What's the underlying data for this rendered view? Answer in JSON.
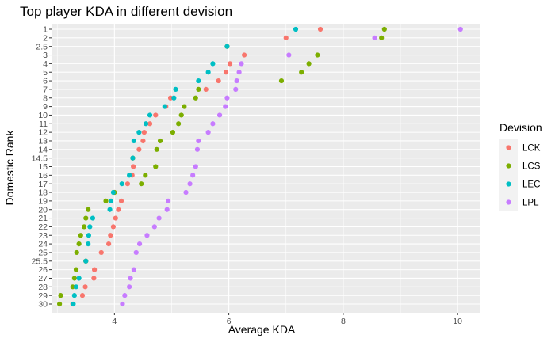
{
  "chart_data": {
    "type": "scatter",
    "title": "Top player KDA in different devision",
    "xlabel": "Average KDA",
    "ylabel": "Domestic Rank",
    "xlim": [
      2.9,
      10.4
    ],
    "x_ticks": [
      "4",
      "6",
      "8",
      "10"
    ],
    "y_categories": [
      "1",
      "2",
      "2.5",
      "3",
      "4",
      "5",
      "6",
      "7",
      "8",
      "9",
      "10",
      "11",
      "12",
      "13",
      "14",
      "14.5",
      "15",
      "16",
      "17",
      "18",
      "19",
      "20",
      "21",
      "22",
      "23",
      "24",
      "25",
      "25.5",
      "26",
      "27",
      "28",
      "29",
      "30"
    ],
    "grid": true,
    "panel_background": "#ebebeb",
    "legend": {
      "title": "Devision",
      "position": "right",
      "background": "#f2f2f2"
    },
    "series": [
      {
        "name": "LCK",
        "color": "#F8766D",
        "points": [
          {
            "x": 7.6,
            "y": "1"
          },
          {
            "x": 7.0,
            "y": "2"
          },
          {
            "x": 5.97,
            "y": "2.5"
          },
          {
            "x": 6.27,
            "y": "3"
          },
          {
            "x": 6.02,
            "y": "4"
          },
          {
            "x": 5.95,
            "y": "5"
          },
          {
            "x": 5.82,
            "y": "6"
          },
          {
            "x": 5.6,
            "y": "7"
          },
          {
            "x": 4.98,
            "y": "8"
          },
          {
            "x": 4.9,
            "y": "9"
          },
          {
            "x": 4.72,
            "y": "10"
          },
          {
            "x": 4.62,
            "y": "11"
          },
          {
            "x": 4.52,
            "y": "12"
          },
          {
            "x": 4.5,
            "y": "13"
          },
          {
            "x": 4.43,
            "y": "14"
          },
          {
            "x": 4.32,
            "y": "14.5"
          },
          {
            "x": 4.33,
            "y": "15"
          },
          {
            "x": 4.31,
            "y": "16"
          },
          {
            "x": 4.23,
            "y": "17"
          },
          {
            "x": 4.0,
            "y": "18"
          },
          {
            "x": 4.12,
            "y": "19"
          },
          {
            "x": 4.07,
            "y": "20"
          },
          {
            "x": 4.02,
            "y": "21"
          },
          {
            "x": 3.98,
            "y": "22"
          },
          {
            "x": 3.93,
            "y": "23"
          },
          {
            "x": 3.9,
            "y": "24"
          },
          {
            "x": 3.77,
            "y": "25"
          },
          {
            "x": 3.5,
            "y": "25.5"
          },
          {
            "x": 3.65,
            "y": "26"
          },
          {
            "x": 3.64,
            "y": "27"
          },
          {
            "x": 3.49,
            "y": "28"
          },
          {
            "x": 3.44,
            "y": "29"
          },
          {
            "x": 3.27,
            "y": "30"
          }
        ]
      },
      {
        "name": "LCS",
        "color": "#7CAE00",
        "points": [
          {
            "x": 8.72,
            "y": "1"
          },
          {
            "x": 8.67,
            "y": "2"
          },
          {
            "x": 5.97,
            "y": "2.5"
          },
          {
            "x": 7.55,
            "y": "3"
          },
          {
            "x": 7.4,
            "y": "4"
          },
          {
            "x": 7.27,
            "y": "5"
          },
          {
            "x": 6.92,
            "y": "6"
          },
          {
            "x": 5.47,
            "y": "7"
          },
          {
            "x": 5.42,
            "y": "8"
          },
          {
            "x": 5.22,
            "y": "9"
          },
          {
            "x": 5.17,
            "y": "10"
          },
          {
            "x": 5.12,
            "y": "11"
          },
          {
            "x": 5.02,
            "y": "12"
          },
          {
            "x": 4.8,
            "y": "13"
          },
          {
            "x": 4.74,
            "y": "14"
          },
          {
            "x": 4.32,
            "y": "14.5"
          },
          {
            "x": 4.72,
            "y": "15"
          },
          {
            "x": 4.54,
            "y": "16"
          },
          {
            "x": 4.47,
            "y": "17"
          },
          {
            "x": 4.0,
            "y": "18"
          },
          {
            "x": 3.85,
            "y": "19"
          },
          {
            "x": 3.54,
            "y": "20"
          },
          {
            "x": 3.5,
            "y": "21"
          },
          {
            "x": 3.47,
            "y": "22"
          },
          {
            "x": 3.41,
            "y": "23"
          },
          {
            "x": 3.38,
            "y": "24"
          },
          {
            "x": 3.34,
            "y": "25"
          },
          {
            "x": 3.5,
            "y": "25.5"
          },
          {
            "x": 3.33,
            "y": "26"
          },
          {
            "x": 3.3,
            "y": "27"
          },
          {
            "x": 3.27,
            "y": "28"
          },
          {
            "x": 3.06,
            "y": "29"
          },
          {
            "x": 3.04,
            "y": "30"
          }
        ]
      },
      {
        "name": "LEC",
        "color": "#00BFC4",
        "points": [
          {
            "x": 7.17,
            "y": "1"
          },
          {
            "x": 5.97,
            "y": "2.5"
          },
          {
            "x": 5.72,
            "y": "4"
          },
          {
            "x": 5.64,
            "y": "5"
          },
          {
            "x": 5.47,
            "y": "6"
          },
          {
            "x": 5.07,
            "y": "7"
          },
          {
            "x": 5.04,
            "y": "8"
          },
          {
            "x": 4.88,
            "y": "9"
          },
          {
            "x": 4.62,
            "y": "10"
          },
          {
            "x": 4.55,
            "y": "11"
          },
          {
            "x": 4.43,
            "y": "12"
          },
          {
            "x": 4.34,
            "y": "13"
          },
          {
            "x": 4.32,
            "y": "14.5"
          },
          {
            "x": 4.26,
            "y": "16"
          },
          {
            "x": 4.13,
            "y": "17"
          },
          {
            "x": 3.98,
            "y": "18"
          },
          {
            "x": 3.94,
            "y": "19"
          },
          {
            "x": 3.92,
            "y": "20"
          },
          {
            "x": 3.62,
            "y": "21"
          },
          {
            "x": 3.57,
            "y": "22"
          },
          {
            "x": 3.55,
            "y": "23"
          },
          {
            "x": 3.54,
            "y": "24"
          },
          {
            "x": 3.5,
            "y": "25.5"
          },
          {
            "x": 3.38,
            "y": "27"
          },
          {
            "x": 3.33,
            "y": "28"
          },
          {
            "x": 3.3,
            "y": "29"
          },
          {
            "x": 3.28,
            "y": "30"
          }
        ]
      },
      {
        "name": "LPL",
        "color": "#C77CFF",
        "points": [
          {
            "x": 10.05,
            "y": "1"
          },
          {
            "x": 8.55,
            "y": "2"
          },
          {
            "x": 7.05,
            "y": "3"
          },
          {
            "x": 6.22,
            "y": "4"
          },
          {
            "x": 6.18,
            "y": "5"
          },
          {
            "x": 6.14,
            "y": "6"
          },
          {
            "x": 6.12,
            "y": "7"
          },
          {
            "x": 5.97,
            "y": "8"
          },
          {
            "x": 5.94,
            "y": "9"
          },
          {
            "x": 5.84,
            "y": "10"
          },
          {
            "x": 5.72,
            "y": "11"
          },
          {
            "x": 5.64,
            "y": "12"
          },
          {
            "x": 5.47,
            "y": "13"
          },
          {
            "x": 5.45,
            "y": "14"
          },
          {
            "x": 5.42,
            "y": "15"
          },
          {
            "x": 5.37,
            "y": "16"
          },
          {
            "x": 5.32,
            "y": "17"
          },
          {
            "x": 5.25,
            "y": "18"
          },
          {
            "x": 4.94,
            "y": "19"
          },
          {
            "x": 4.92,
            "y": "20"
          },
          {
            "x": 4.78,
            "y": "21"
          },
          {
            "x": 4.7,
            "y": "22"
          },
          {
            "x": 4.57,
            "y": "23"
          },
          {
            "x": 4.44,
            "y": "24"
          },
          {
            "x": 4.38,
            "y": "25"
          },
          {
            "x": 4.34,
            "y": "26"
          },
          {
            "x": 4.28,
            "y": "27"
          },
          {
            "x": 4.26,
            "y": "28"
          },
          {
            "x": 4.18,
            "y": "29"
          },
          {
            "x": 4.14,
            "y": "30"
          }
        ]
      }
    ]
  }
}
